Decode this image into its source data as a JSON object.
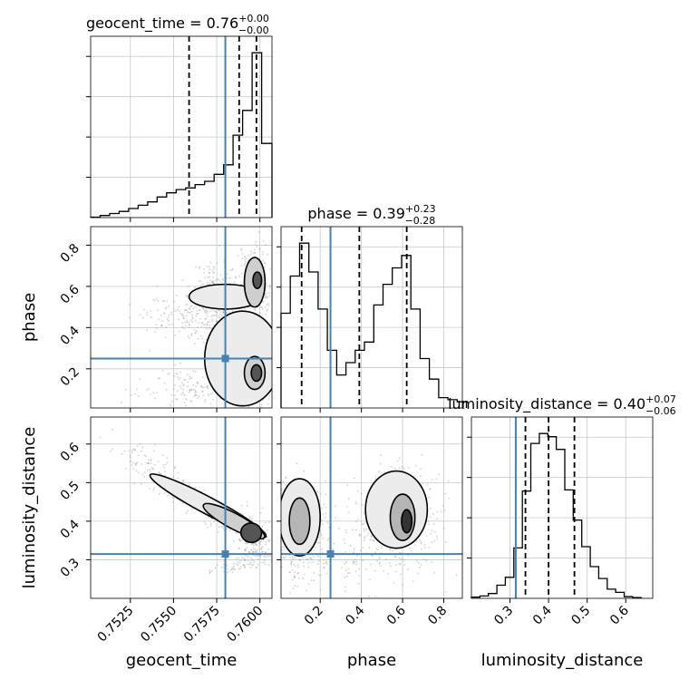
{
  "chart_data": {
    "type": "corner",
    "parameters": [
      "geocent_time",
      "phase",
      "luminosity_distance"
    ],
    "truth": {
      "geocent_time": 0.758,
      "phase": 0.25,
      "luminosity_distance": 0.315
    },
    "colors": {
      "truth": "#4682b4",
      "hist": "#000000",
      "grid": "#c8c8c8",
      "scatter": "#9a9a9a"
    },
    "grid": true,
    "titles": [
      {
        "param": "geocent_time",
        "text": "geocent_time = 0.76",
        "sup": "+0.00",
        "sub": "−0.00"
      },
      {
        "param": "phase",
        "text": "phase = 0.39",
        "sup": "+0.23",
        "sub": "−0.28"
      },
      {
        "param": "luminosity_distance",
        "text": "luminosity_distance = 0.40",
        "sup": "+0.07",
        "sub": "−0.06"
      }
    ],
    "axes": {
      "geocent_time": {
        "label": "geocent_time",
        "range": [
          0.7502,
          0.7607
        ],
        "ticks": [
          0.7525,
          0.755,
          0.7575,
          0.76
        ],
        "tick_labels": [
          "0.7525",
          "0.7550",
          "0.7575",
          "0.7600"
        ],
        "quantiles": [
          0.7559,
          0.7588,
          0.7598
        ]
      },
      "phase": {
        "label": "phase",
        "range": [
          0.01,
          0.89
        ],
        "ticks": [
          0.2,
          0.4,
          0.6,
          0.8
        ],
        "tick_labels": [
          "0.2",
          "0.4",
          "0.6",
          "0.8"
        ],
        "quantiles": [
          0.11,
          0.39,
          0.62
        ]
      },
      "luminosity_distance": {
        "label": "luminosity_distance",
        "range": [
          0.2,
          0.67
        ],
        "ticks": [
          0.3,
          0.4,
          0.5,
          0.6
        ],
        "tick_labels": [
          "0.3",
          "0.4",
          "0.5",
          "0.6"
        ],
        "quantiles": [
          0.34,
          0.4,
          0.467
        ]
      }
    },
    "histograms": {
      "geocent_time": {
        "edges": [
          0.7502,
          0.75075,
          0.7513,
          0.75185,
          0.7524,
          0.75295,
          0.7535,
          0.75405,
          0.7546,
          0.75515,
          0.7557,
          0.75625,
          0.7568,
          0.75735,
          0.7579,
          0.75845,
          0.759,
          0.75955,
          0.7601,
          0.7607
        ],
        "counts": [
          0.1,
          0.5,
          1.0,
          1.5,
          2.2,
          3.0,
          3.8,
          5.0,
          6.0,
          6.8,
          7.2,
          8.0,
          8.8,
          10.5,
          12.8,
          20.0,
          26.0,
          40.0,
          18.0
        ]
      },
      "phase": {
        "edges": [
          0.01,
          0.055,
          0.1,
          0.145,
          0.19,
          0.235,
          0.28,
          0.325,
          0.37,
          0.415,
          0.46,
          0.505,
          0.55,
          0.595,
          0.64,
          0.685,
          0.73,
          0.775,
          0.82,
          0.865,
          0.91
        ],
        "counts": [
          2.3,
          3.2,
          4.0,
          3.3,
          2.4,
          1.4,
          0.8,
          1.1,
          1.4,
          1.6,
          2.5,
          3.0,
          3.4,
          3.7,
          2.4,
          1.2,
          0.7,
          0.25,
          0.2,
          0.15
        ]
      },
      "luminosity_distance": {
        "edges": [
          0.2,
          0.222,
          0.244,
          0.266,
          0.288,
          0.31,
          0.332,
          0.354,
          0.376,
          0.398,
          0.42,
          0.442,
          0.464,
          0.486,
          0.508,
          0.53,
          0.552,
          0.574,
          0.596,
          0.618,
          0.64
        ],
        "counts": [
          0.3,
          0.6,
          1.2,
          3.3,
          5.3,
          12.7,
          27.0,
          39.0,
          41.5,
          40.7,
          37.5,
          27.3,
          19.7,
          13.0,
          8.0,
          5.0,
          2.3,
          1.5,
          0.4,
          0.2
        ]
      }
    }
  }
}
